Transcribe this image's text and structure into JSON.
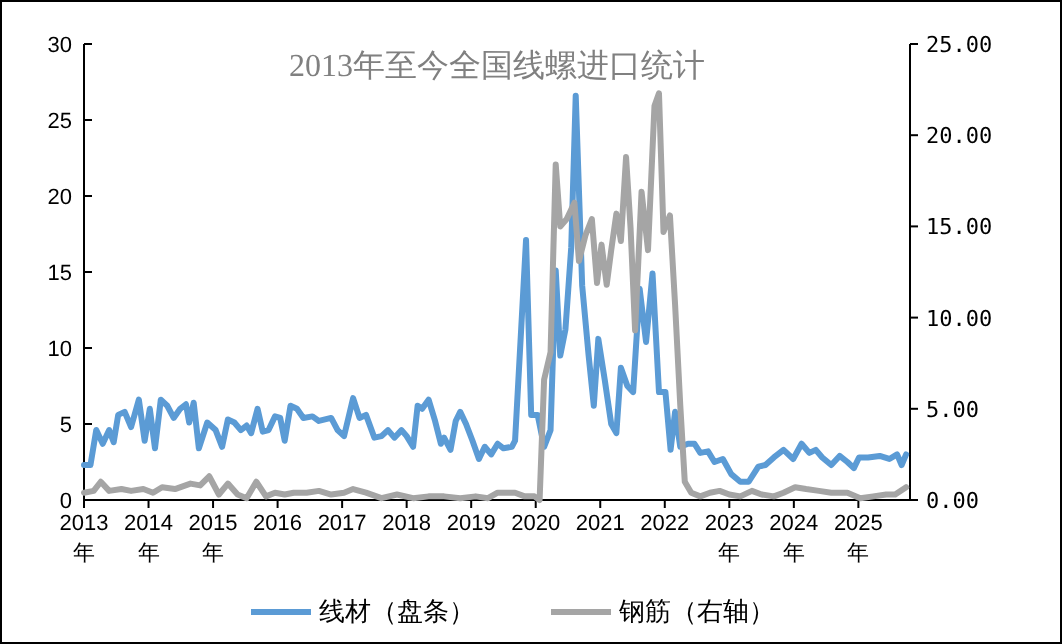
{
  "chart_data": {
    "type": "line",
    "title": "2013年至今全国线螺进口统计",
    "legend": "bottom",
    "xlim": [
      2013,
      2025.8
    ],
    "xticks": [
      {
        "value": 2013,
        "label": "2013\n年"
      },
      {
        "value": 2014,
        "label": "2014\n年"
      },
      {
        "value": 2015,
        "label": "2015\n年"
      },
      {
        "value": 2016,
        "label": "2016"
      },
      {
        "value": 2017,
        "label": "2017"
      },
      {
        "value": 2018,
        "label": "2018"
      },
      {
        "value": 2019,
        "label": "2019"
      },
      {
        "value": 2020,
        "label": "2020"
      },
      {
        "value": 2021,
        "label": "2021"
      },
      {
        "value": 2022,
        "label": "2022"
      },
      {
        "value": 2023,
        "label": "2023\n年"
      },
      {
        "value": 2024,
        "label": "2024\n年"
      },
      {
        "value": 2025,
        "label": "2025\n年"
      }
    ],
    "ylim": [
      0,
      30
    ],
    "yticks": [
      0,
      5,
      10,
      15,
      20,
      25,
      30
    ],
    "y2lim": [
      0,
      25
    ],
    "y2ticks": [
      {
        "value": 0,
        "label": "0.00"
      },
      {
        "value": 5,
        "label": "5.00"
      },
      {
        "value": 10,
        "label": "10.00"
      },
      {
        "value": 15,
        "label": "15.00"
      },
      {
        "value": 20,
        "label": "20.00"
      },
      {
        "value": 25,
        "label": "25.00"
      }
    ],
    "series": [
      {
        "name": "线材（盘条）",
        "color": "#5b9bd5",
        "x": [
          2013.0,
          2013.1,
          2013.19,
          2013.29,
          2013.39,
          2013.46,
          2013.53,
          2013.63,
          2013.73,
          2013.85,
          2013.94,
          2014.02,
          2014.1,
          2014.19,
          2014.29,
          2014.39,
          2014.49,
          2014.58,
          2014.63,
          2014.7,
          2014.78,
          2014.91,
          2015.04,
          2015.14,
          2015.23,
          2015.33,
          2015.43,
          2015.52,
          2015.59,
          2015.69,
          2015.77,
          2015.86,
          2015.96,
          2016.04,
          2016.11,
          2016.2,
          2016.3,
          2016.4,
          2016.54,
          2016.64,
          2016.83,
          2016.93,
          2017.03,
          2017.17,
          2017.27,
          2017.37,
          2017.5,
          2017.61,
          2017.71,
          2017.81,
          2017.92,
          2018.0,
          2018.1,
          2018.17,
          2018.24,
          2018.34,
          2018.44,
          2018.53,
          2018.58,
          2018.68,
          2018.76,
          2018.83,
          2018.92,
          2019.02,
          2019.12,
          2019.21,
          2019.31,
          2019.41,
          2019.5,
          2019.63,
          2019.68,
          2019.85,
          2019.93,
          2020.03,
          2020.13,
          2020.23,
          2020.31,
          2020.38,
          2020.46,
          2020.55,
          2020.62,
          2020.72,
          2020.82,
          2020.9,
          2020.97,
          2021.07,
          2021.17,
          2021.25,
          2021.32,
          2021.42,
          2021.51,
          2021.61,
          2021.71,
          2021.81,
          2021.91,
          2022.01,
          2022.09,
          2022.16,
          2022.24,
          2022.36,
          2022.46,
          2022.55,
          2022.67,
          2022.77,
          2022.9,
          2023.03,
          2023.17,
          2023.3,
          2023.45,
          2023.56,
          2023.69,
          2023.84,
          2023.99,
          2024.12,
          2024.24,
          2024.34,
          2024.44,
          2024.58,
          2024.71,
          2024.83,
          2024.93,
          2025.01,
          2025.15,
          2025.33,
          2025.48,
          2025.6,
          2025.67,
          2025.74
        ],
        "values": [
          2.3,
          2.3,
          4.6,
          3.7,
          4.6,
          3.8,
          5.6,
          5.8,
          4.8,
          6.6,
          3.9,
          6.0,
          3.4,
          6.6,
          6.2,
          5.4,
          6.0,
          6.3,
          5.1,
          6.4,
          3.4,
          5.1,
          4.6,
          3.5,
          5.3,
          5.1,
          4.6,
          4.9,
          4.4,
          6.0,
          4.5,
          4.6,
          5.5,
          5.4,
          3.9,
          6.2,
          6.0,
          5.4,
          5.5,
          5.2,
          5.4,
          4.6,
          4.2,
          6.7,
          5.4,
          5.6,
          4.1,
          4.2,
          4.6,
          4.1,
          4.6,
          4.2,
          3.5,
          6.2,
          6.0,
          6.6,
          5.2,
          3.7,
          4.1,
          3.3,
          5.2,
          5.8,
          5.0,
          3.9,
          2.7,
          3.5,
          3.0,
          3.7,
          3.4,
          3.5,
          3.9,
          17.1,
          5.6,
          5.6,
          3.5,
          4.6,
          15.1,
          9.5,
          11.2,
          16.6,
          26.6,
          14.1,
          9.5,
          6.2,
          10.6,
          7.9,
          5.0,
          4.4,
          8.7,
          7.5,
          7.1,
          13.9,
          10.4,
          14.9,
          7.1,
          7.1,
          3.3,
          5.8,
          3.5,
          3.7,
          3.7,
          3.1,
          3.2,
          2.5,
          2.7,
          1.7,
          1.2,
          1.2,
          2.2,
          2.3,
          2.8,
          3.3,
          2.7,
          3.7,
          3.1,
          3.3,
          2.8,
          2.3,
          2.9,
          2.5,
          2.1,
          2.8,
          2.8,
          2.9,
          2.7,
          3.0,
          2.3,
          3.0
        ]
      },
      {
        "name": "钢筋（右轴）",
        "color": "#a5a5a5",
        "axis": "y2",
        "x": [
          2013.0,
          2013.15,
          2013.26,
          2013.39,
          2013.58,
          2013.73,
          2013.92,
          2014.07,
          2014.21,
          2014.41,
          2014.65,
          2014.8,
          2014.94,
          2015.09,
          2015.23,
          2015.38,
          2015.52,
          2015.67,
          2015.82,
          2015.96,
          2016.11,
          2016.25,
          2016.45,
          2016.64,
          2016.83,
          2017.03,
          2017.17,
          2017.37,
          2017.61,
          2017.85,
          2018.1,
          2018.34,
          2018.58,
          2018.83,
          2019.07,
          2019.26,
          2019.41,
          2019.63,
          2019.68,
          2019.83,
          2019.98,
          2020.06,
          2020.13,
          2020.23,
          2020.31,
          2020.38,
          2020.48,
          2020.6,
          2020.67,
          2020.77,
          2020.87,
          2020.95,
          2021.02,
          2021.1,
          2021.17,
          2021.25,
          2021.32,
          2021.4,
          2021.47,
          2021.54,
          2021.64,
          2021.74,
          2021.84,
          2021.91,
          2021.98,
          2022.08,
          2022.16,
          2022.24,
          2022.31,
          2022.41,
          2022.55,
          2022.7,
          2022.85,
          2023.0,
          2023.17,
          2023.35,
          2023.5,
          2023.69,
          2023.84,
          2024.02,
          2024.19,
          2024.39,
          2024.58,
          2024.83,
          2025.03,
          2025.23,
          2025.43,
          2025.57,
          2025.74
        ],
        "values": [
          0.4,
          0.5,
          1.0,
          0.5,
          0.6,
          0.5,
          0.6,
          0.4,
          0.7,
          0.6,
          0.9,
          0.8,
          1.3,
          0.3,
          0.9,
          0.3,
          0.1,
          1.0,
          0.2,
          0.4,
          0.3,
          0.4,
          0.4,
          0.5,
          0.3,
          0.4,
          0.6,
          0.4,
          0.1,
          0.3,
          0.1,
          0.2,
          0.2,
          0.1,
          0.2,
          0.1,
          0.4,
          0.4,
          0.4,
          0.2,
          0.2,
          0,
          6.6,
          8.1,
          18.4,
          15.0,
          15.4,
          16.3,
          13.1,
          14.5,
          15.4,
          11.9,
          14.0,
          11.8,
          13.7,
          15.7,
          14.2,
          18.8,
          14.9,
          9.3,
          16.9,
          13.7,
          21.6,
          22.3,
          14.7,
          15.6,
          10.7,
          5.2,
          1.0,
          0.4,
          0.2,
          0.4,
          0.5,
          0.3,
          0.2,
          0.5,
          0.3,
          0.2,
          0.4,
          0.7,
          0.6,
          0.5,
          0.4,
          0.4,
          0.1,
          0.2,
          0.3,
          0.3,
          0.7
        ]
      }
    ]
  }
}
